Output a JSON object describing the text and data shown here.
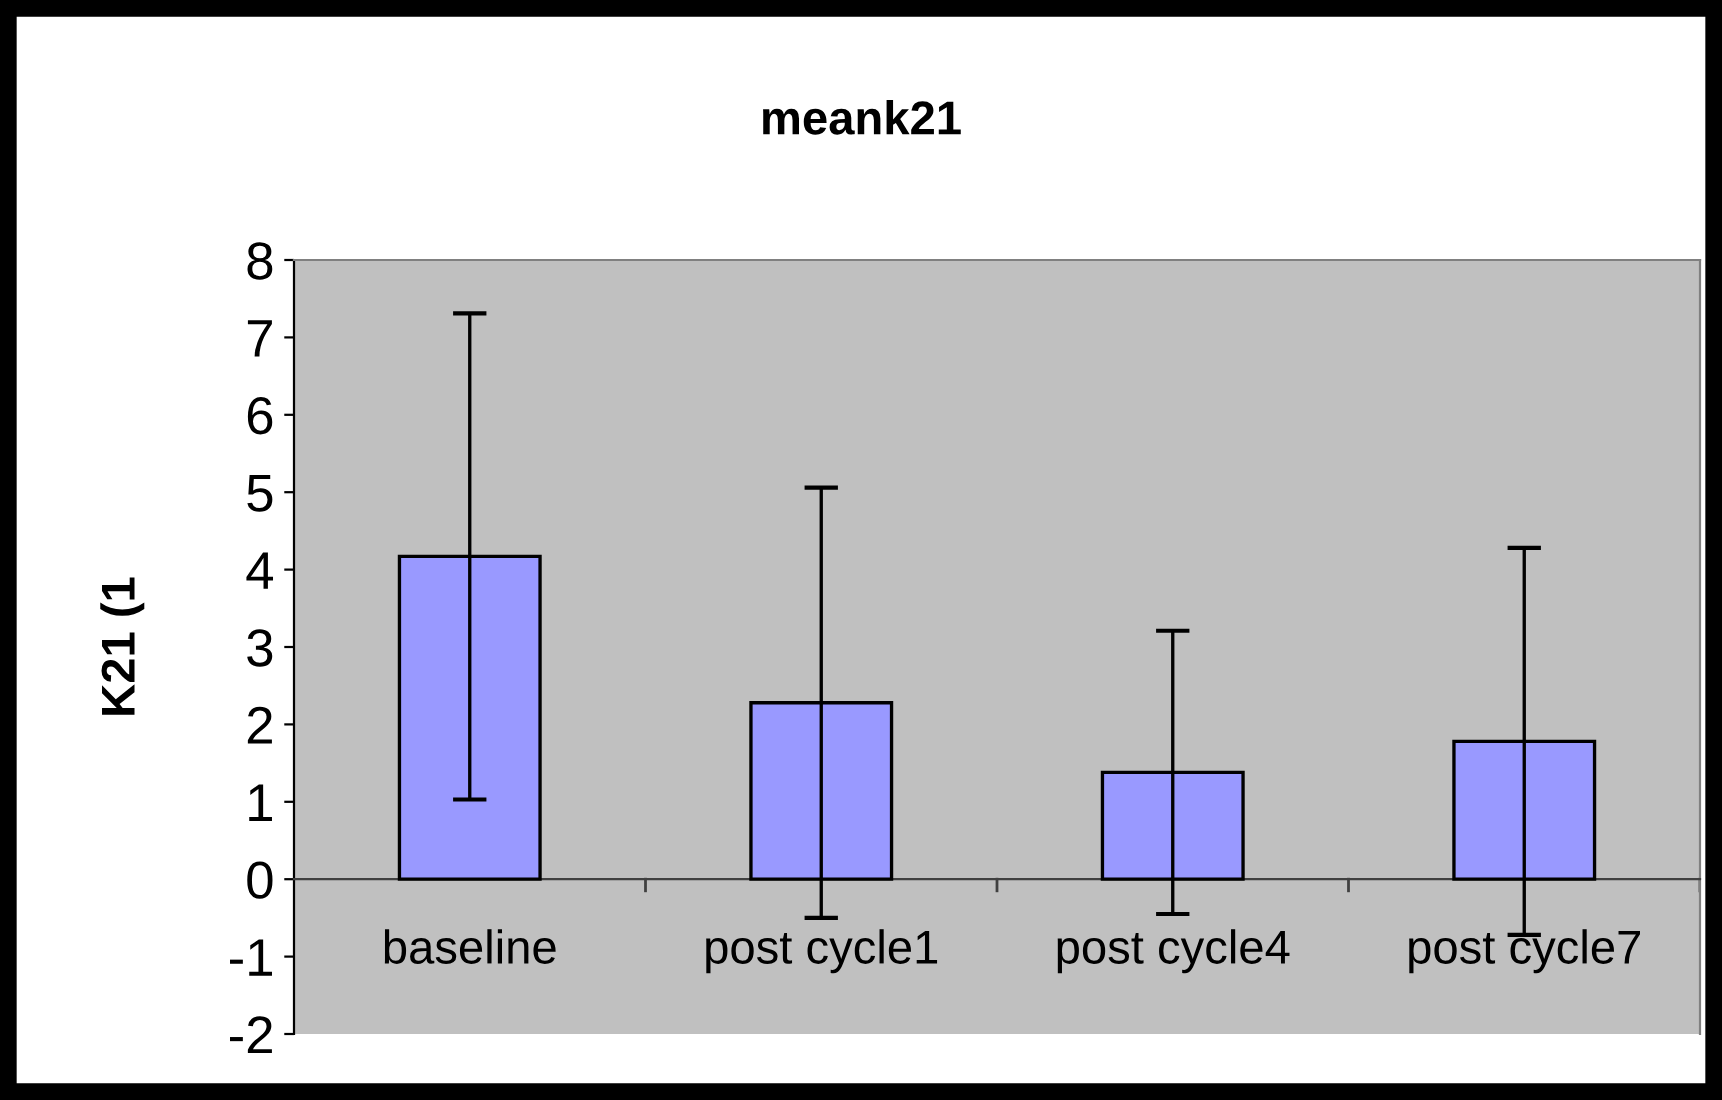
{
  "chart_data": {
    "type": "bar",
    "title": "meank21",
    "ylabel": "K21 (1",
    "categories": [
      "baseline",
      "post cycle1",
      "post cycle4",
      "post cycle7"
    ],
    "values": [
      4.17,
      2.28,
      1.38,
      1.78
    ],
    "errors": [
      3.14,
      2.78,
      1.83,
      2.5
    ],
    "color": "#9999ff",
    "ylim": [
      -2,
      8
    ],
    "yticks": [
      -2,
      -1,
      0,
      1,
      2,
      3,
      4,
      5,
      6,
      7,
      8
    ],
    "grid": false
  }
}
